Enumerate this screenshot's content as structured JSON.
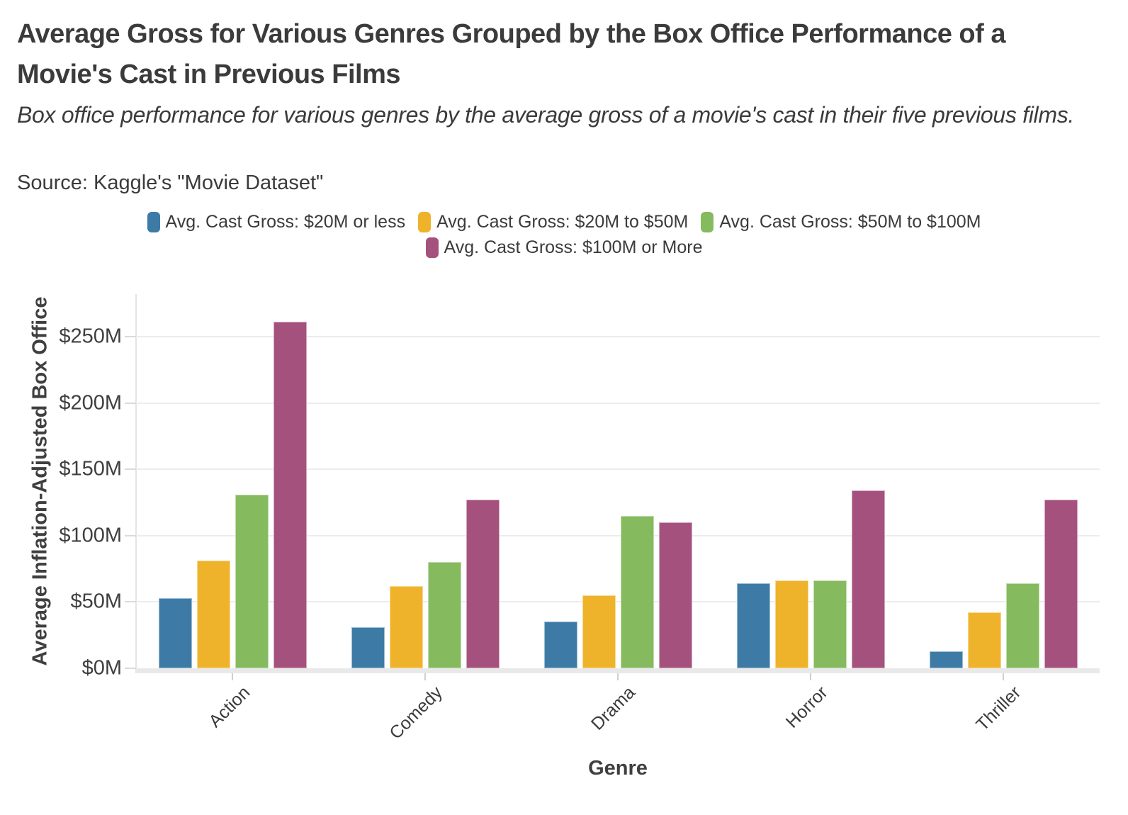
{
  "header": {
    "title": "Average Gross for Various Genres Grouped by the Box Office Performance of a Movie's Cast in Previous Films",
    "subtitle": "Box office performance for various genres by the average gross of a movie's cast in their five previous films.",
    "source": "Source: Kaggle's \"Movie Dataset\""
  },
  "chart_data": {
    "type": "bar",
    "title": "Average Gross for Various Genres Grouped by the Box Office Performance of a Movie's Cast in Previous Films",
    "subtitle": "Box office performance for various genres by the average gross of a movie's cast in their five previous films.",
    "source": "Source: Kaggle's \"Movie Dataset\"",
    "categories": [
      "Action",
      "Comedy",
      "Drama",
      "Horror",
      "Thriller"
    ],
    "series": [
      {
        "name": "Avg. Cast Gross: $20M or less",
        "color": "#3d7ba6",
        "values": [
          53,
          31,
          35,
          64,
          13
        ]
      },
      {
        "name": "Avg. Cast Gross: $20M to $50M",
        "color": "#eeb32a",
        "values": [
          81,
          62,
          55,
          66,
          42
        ]
      },
      {
        "name": "Avg. Cast Gross: $50M to $100M",
        "color": "#85ba5f",
        "values": [
          131,
          80,
          115,
          66,
          64
        ]
      },
      {
        "name": "Avg. Cast Gross: $100M or More",
        "color": "#a4517e",
        "values": [
          261,
          127,
          110,
          134,
          127
        ]
      }
    ],
    "values_unit": "millions USD",
    "xlabel": "Genre",
    "ylabel": "Average Inflation-Adjusted Box Office",
    "ylim": [
      0,
      282
    ],
    "yticks": [
      {
        "value": 0,
        "label": "$0M"
      },
      {
        "value": 50,
        "label": "$50M"
      },
      {
        "value": 100,
        "label": "$100M"
      },
      {
        "value": 150,
        "label": "$150M"
      },
      {
        "value": 200,
        "label": "$200M"
      },
      {
        "value": 250,
        "label": "$250M"
      }
    ],
    "grid": "horizontal",
    "legend_position": "top-center"
  }
}
